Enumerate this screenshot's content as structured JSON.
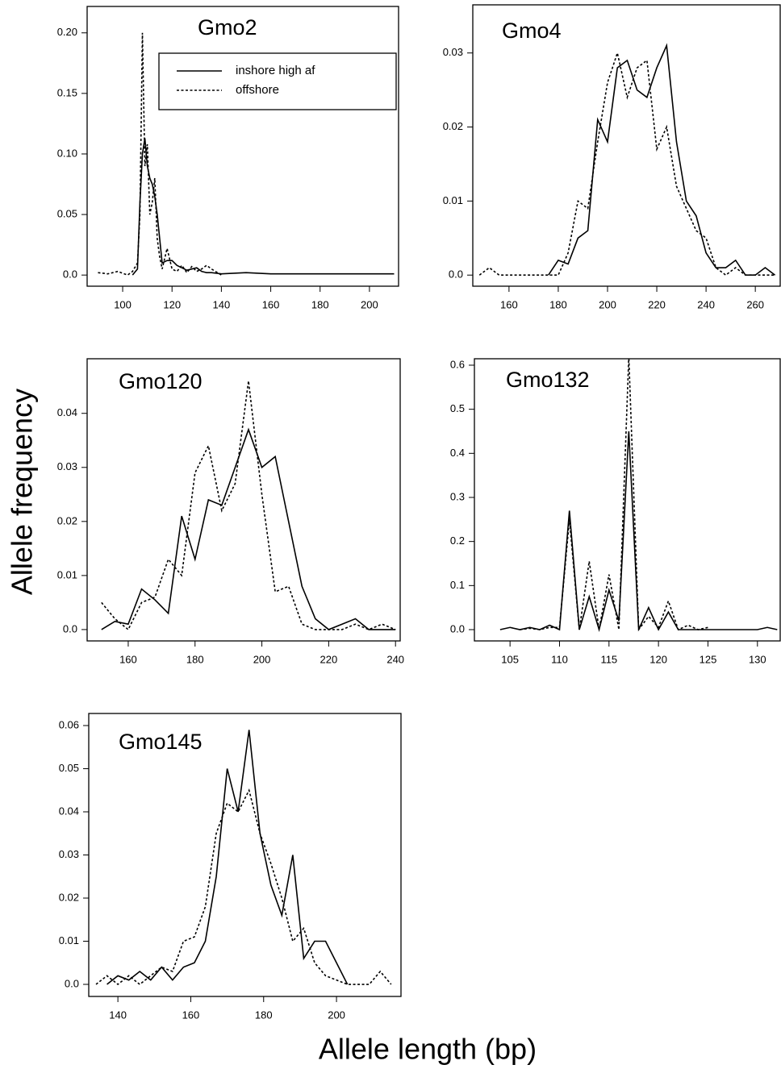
{
  "ylabel": "Allele frequency",
  "xlabel": "Allele length (bp)",
  "chart_data": [
    {
      "type": "line",
      "title": "Gmo2",
      "legend": "top-right",
      "x": [
        90,
        94,
        98,
        102,
        104,
        106,
        107,
        108,
        109,
        110,
        111,
        112,
        113,
        114,
        115,
        116,
        118,
        120,
        122,
        124,
        126,
        128,
        130,
        132,
        134,
        136,
        140,
        150,
        160,
        170,
        180,
        190,
        200,
        210
      ],
      "series": [
        {
          "name": "inshore high af",
          "color": "#000000",
          "dash": "solid",
          "values": [
            null,
            null,
            null,
            null,
            0.0,
            0.005,
            0.06,
            0.1,
            0.113,
            0.09,
            0.08,
            0.075,
            0.065,
            0.05,
            0.03,
            0.01,
            0.012,
            0.012,
            0.008,
            0.006,
            0.004,
            0.005,
            0.006,
            0.003,
            0.002,
            0.002,
            0.001,
            0.002,
            0.001,
            0.001,
            0.001,
            0.001,
            0.001,
            0.001
          ]
        },
        {
          "name": "offshore",
          "color": "#000000",
          "dash": "dotted",
          "values": [
            0.002,
            0.001,
            0.003,
            0.0,
            0.003,
            0.01,
            0.05,
            0.2,
            0.09,
            0.108,
            0.05,
            0.06,
            0.08,
            0.03,
            0.015,
            0.005,
            0.022,
            0.005,
            0.003,
            0.008,
            0.002,
            0.007,
            0.003,
            0.005,
            0.008,
            0.005,
            0.0,
            null,
            null,
            null,
            null,
            null,
            null,
            null
          ]
        }
      ],
      "xlim": [
        85.6,
        211.8
      ],
      "xticks": [
        100,
        120,
        140,
        160,
        180,
        200
      ],
      "ylim": [
        -0.0092,
        0.2218
      ],
      "yticks": [
        {
          "value": 0,
          "label": "0.0"
        },
        0.05,
        {
          "value": 0.1,
          "label": "0.10"
        },
        0.15,
        {
          "value": 0.2,
          "label": "0.20"
        }
      ]
    },
    {
      "type": "line",
      "title": "Gmo4",
      "x": [
        148,
        152,
        156,
        160,
        164,
        168,
        172,
        176,
        180,
        184,
        188,
        192,
        196,
        200,
        204,
        208,
        212,
        216,
        220,
        224,
        228,
        232,
        236,
        240,
        244,
        248,
        252,
        256,
        260,
        264,
        268
      ],
      "series": [
        {
          "color": "#000000",
          "dash": "solid",
          "values": [
            null,
            null,
            null,
            null,
            null,
            null,
            null,
            0.0,
            0.002,
            0.0015,
            0.005,
            0.006,
            0.021,
            0.018,
            0.028,
            0.029,
            0.025,
            0.024,
            0.028,
            0.031,
            0.018,
            0.01,
            0.008,
            0.003,
            0.001,
            0.001,
            0.002,
            0.0,
            0.0,
            0.001,
            0.0
          ]
        },
        {
          "color": "#000000",
          "dash": "dotted",
          "values": [
            0.0,
            0.001,
            0.0,
            0.0,
            0.0,
            0.0,
            0.0,
            0.0,
            0.0,
            0.003,
            0.01,
            0.009,
            0.018,
            0.026,
            0.03,
            0.024,
            0.028,
            0.029,
            0.017,
            0.02,
            0.012,
            0.009,
            0.006,
            0.005,
            0.001,
            0.0,
            0.001,
            0.0,
            0.0,
            0.0,
            0.0
          ]
        }
      ],
      "xlim": [
        145.3,
        270.1
      ],
      "xticks": [
        160,
        180,
        200,
        220,
        240,
        260
      ],
      "ylim": [
        -0.0015,
        0.0365
      ],
      "yticks": [
        {
          "value": 0,
          "label": "0.0"
        },
        0.01,
        0.02,
        0.03
      ]
    },
    {
      "type": "line",
      "title": "Gmo120",
      "x": [
        152,
        156,
        160,
        164,
        168,
        172,
        176,
        180,
        184,
        188,
        192,
        196,
        200,
        204,
        208,
        212,
        216,
        220,
        224,
        228,
        232,
        236,
        240
      ],
      "series": [
        {
          "color": "#000000",
          "dash": "solid",
          "values": [
            0.0,
            0.0015,
            0.001,
            0.0075,
            0.0055,
            0.003,
            0.021,
            0.013,
            0.024,
            0.023,
            0.03,
            0.037,
            0.03,
            0.032,
            0.02,
            0.008,
            0.002,
            0.0,
            0.001,
            0.002,
            0.0,
            0.0,
            0.0
          ]
        },
        {
          "color": "#000000",
          "dash": "dotted",
          "values": [
            0.005,
            0.002,
            0.0,
            0.005,
            0.006,
            0.013,
            0.01,
            0.029,
            0.034,
            0.022,
            0.027,
            0.046,
            0.025,
            0.007,
            0.008,
            0.001,
            0.0,
            0.0,
            0.0,
            0.001,
            0.0,
            0.001,
            0.0
          ]
        }
      ],
      "xlim": [
        147.7,
        241.4
      ],
      "xticks": [
        160,
        180,
        200,
        220,
        240
      ],
      "ylim": [
        -0.0021,
        0.0501
      ],
      "yticks": [
        {
          "value": 0,
          "label": "0.0"
        },
        0.01,
        0.02,
        0.03,
        0.04
      ]
    },
    {
      "type": "line",
      "title": "Gmo132",
      "x": [
        104,
        105,
        106,
        107,
        108,
        109,
        110,
        111,
        112,
        113,
        114,
        115,
        116,
        117,
        118,
        119,
        120,
        121,
        122,
        123,
        124,
        125,
        126,
        127,
        128,
        129,
        130,
        131,
        132
      ],
      "series": [
        {
          "color": "#000000",
          "dash": "solid",
          "values": [
            0.0,
            0.005,
            0.0,
            0.005,
            0.0,
            0.01,
            0.0,
            0.27,
            0.0,
            0.075,
            0.0,
            0.09,
            0.02,
            0.45,
            0.0,
            0.05,
            0.0,
            0.04,
            0.0,
            0.0,
            0.0,
            0.0,
            0.0,
            0.0,
            0.0,
            0.0,
            0.0,
            0.005,
            0.0
          ]
        },
        {
          "color": "#000000",
          "dash": "dotted",
          "values": [
            null,
            null,
            0.0,
            0.003,
            0.0,
            0.005,
            0.005,
            0.25,
            0.0,
            0.155,
            0.0,
            0.125,
            0.0,
            0.62,
            0.0,
            0.03,
            0.005,
            0.065,
            0.0,
            0.01,
            0.0,
            0.005,
            null,
            null,
            null,
            null,
            null,
            null,
            null
          ]
        }
      ],
      "xlim": [
        101.4,
        132.3
      ],
      "xticks": [
        105,
        110,
        115,
        120,
        125,
        130
      ],
      "ylim": [
        -0.0256,
        0.6146
      ],
      "yticks": [
        {
          "value": 0,
          "label": "0.0"
        },
        0.1,
        0.2,
        0.3,
        0.4,
        0.5,
        0.6
      ]
    },
    {
      "type": "line",
      "title": "Gmo145",
      "x": [
        134,
        137,
        140,
        143,
        146,
        149,
        152,
        155,
        158,
        161,
        164,
        167,
        170,
        173,
        176,
        179,
        182,
        185,
        188,
        191,
        194,
        197,
        200,
        203,
        206,
        209,
        212,
        215
      ],
      "series": [
        {
          "color": "#000000",
          "dash": "solid",
          "values": [
            null,
            0.0,
            0.002,
            0.001,
            0.003,
            0.001,
            0.004,
            0.001,
            0.004,
            0.005,
            0.01,
            0.025,
            0.05,
            0.04,
            0.059,
            0.035,
            0.023,
            0.016,
            0.03,
            0.006,
            0.01,
            0.01,
            0.005,
            0.0,
            null,
            null,
            null,
            null
          ]
        },
        {
          "color": "#000000",
          "dash": "dotted",
          "values": [
            0.0,
            0.002,
            0.0,
            0.002,
            0.0,
            0.002,
            0.004,
            0.003,
            0.01,
            0.011,
            0.018,
            0.035,
            0.042,
            0.04,
            0.045,
            0.035,
            0.028,
            0.02,
            0.01,
            0.013,
            0.005,
            0.002,
            0.001,
            0.0,
            0.0,
            0.0,
            0.003,
            0.0
          ]
        }
      ],
      "xlim": [
        132.0,
        217.7
      ],
      "xticks": [
        140,
        160,
        180,
        200
      ],
      "ylim": [
        -0.0028,
        0.0628
      ],
      "yticks": [
        {
          "value": 0,
          "label": "0.0"
        },
        0.01,
        0.02,
        0.03,
        0.04,
        0.05,
        0.06
      ]
    }
  ]
}
